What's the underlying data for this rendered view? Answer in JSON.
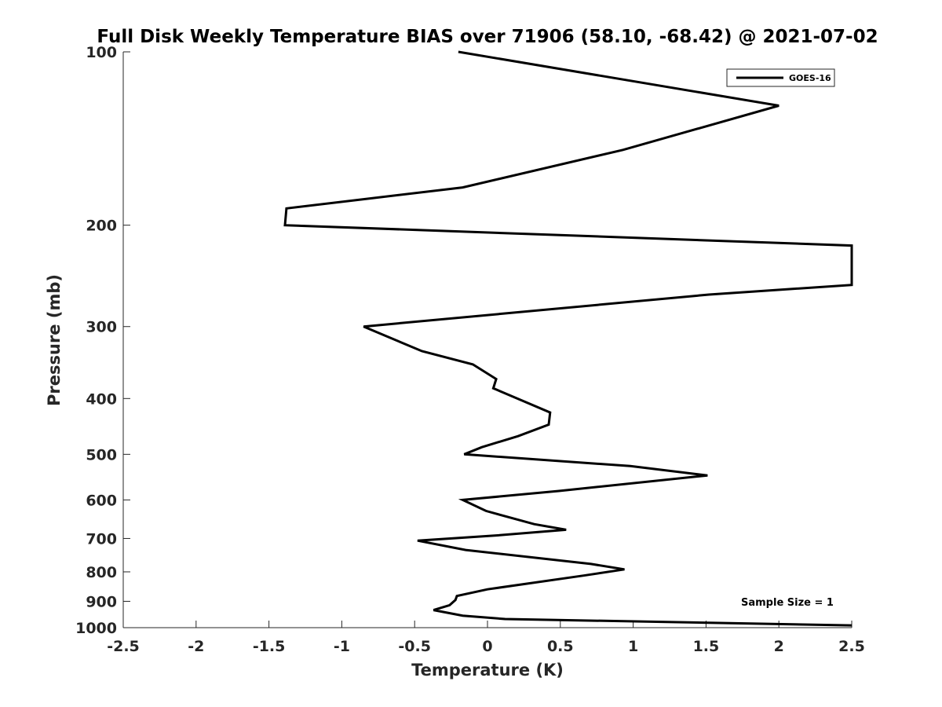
{
  "chart_data": {
    "type": "line",
    "title": "Full Disk Weekly Temperature BIAS over 71906 (58.10, -68.42) @ 2021-07-02",
    "xlabel": "Temperature (K)",
    "ylabel": "Pressure (mb)",
    "xlim": [
      -2.5,
      2.5
    ],
    "ylim": [
      100,
      1000
    ],
    "y_scale": "log",
    "y_reversed": true,
    "x_ticks": [
      "-2.5",
      "-2",
      "-1.5",
      "-1",
      "-0.5",
      "0",
      "0.5",
      "1",
      "1.5",
      "2",
      "2.5"
    ],
    "y_ticks": [
      "100",
      "200",
      "300",
      "400",
      "500",
      "600",
      "700",
      "800",
      "900",
      "1000"
    ],
    "grid": false,
    "legend": {
      "position": "top-right",
      "entries": [
        "GOES-16"
      ]
    },
    "annotations": [
      "Sample Size = 1"
    ],
    "series": [
      {
        "name": "GOES-16",
        "color": "#000000",
        "points": [
          [
            -0.2,
            100
          ],
          [
            2.0,
            124
          ],
          [
            0.93,
            148
          ],
          [
            -0.17,
            172
          ],
          [
            -1.38,
            187
          ],
          [
            -1.39,
            200
          ],
          [
            2.5,
            217
          ],
          [
            2.5,
            254
          ],
          [
            1.52,
            264
          ],
          [
            -0.85,
            300
          ],
          [
            -0.45,
            331
          ],
          [
            -0.1,
            349
          ],
          [
            0.06,
            370
          ],
          [
            0.04,
            384
          ],
          [
            0.43,
            423
          ],
          [
            0.42,
            444
          ],
          [
            0.21,
            465
          ],
          [
            -0.04,
            486
          ],
          [
            -0.16,
            500
          ],
          [
            0.98,
            524
          ],
          [
            1.51,
            544
          ],
          [
            0.49,
            579
          ],
          [
            -0.17,
            600
          ],
          [
            -0.01,
            627
          ],
          [
            0.32,
            661
          ],
          [
            0.54,
            676
          ],
          [
            0.05,
            692
          ],
          [
            -0.48,
            706
          ],
          [
            -0.15,
            733
          ],
          [
            0.71,
            775
          ],
          [
            0.94,
            792
          ],
          [
            0.66,
            812
          ],
          [
            0.0,
            858
          ],
          [
            -0.21,
            881
          ],
          [
            -0.22,
            895
          ],
          [
            -0.26,
            914
          ],
          [
            -0.37,
            932
          ],
          [
            -0.17,
            953
          ],
          [
            0.12,
            966
          ],
          [
            2.5,
            991
          ]
        ]
      }
    ]
  }
}
